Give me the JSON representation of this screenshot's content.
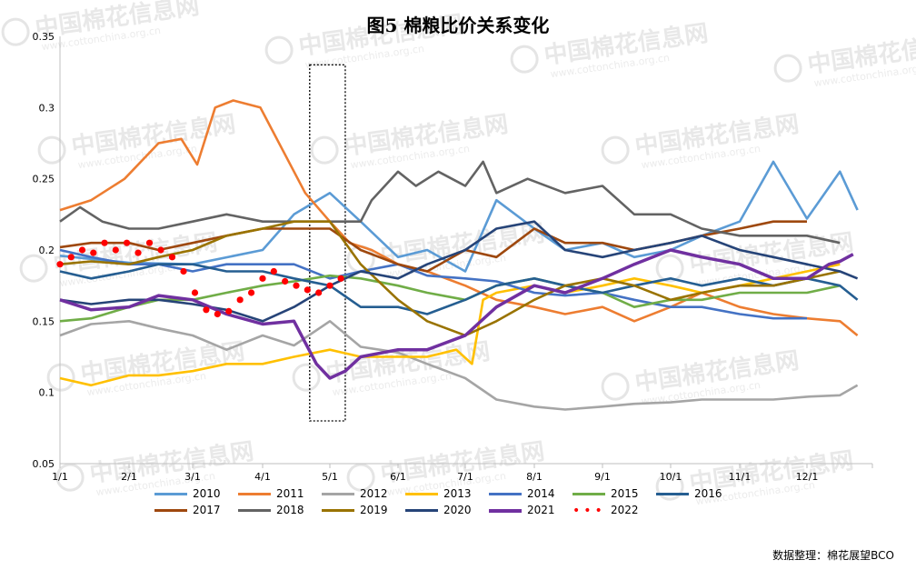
{
  "page": {
    "title": "图5  棉粮比价关系变化",
    "source": "数据整理：棉花展望BCO"
  },
  "watermark": {
    "text": "中国棉花信息网",
    "url": "www.cottonchina.org.cn",
    "icon": "cotton-logo-icon"
  },
  "chart_data": {
    "type": "line",
    "title": "图5  棉粮比价关系变化",
    "xlabel": "",
    "ylabel": "",
    "x_ticks": [
      "1/1",
      "2/1",
      "3/1",
      "4/1",
      "5/1",
      "6/1",
      "7/1",
      "8/1",
      "9/1",
      "10/1",
      "11/1",
      "12/1"
    ],
    "y_ticks": [
      "0.35",
      "0.3",
      "0.25",
      "0.2",
      "0.15",
      "0.1",
      "0.05"
    ],
    "ylim": [
      0.05,
      0.35
    ],
    "x_unit": "day_of_year",
    "xlim": [
      1,
      365
    ],
    "grid": false,
    "legend_position": "bottom",
    "highlight_box": {
      "x_start": 112,
      "x_end": 128,
      "y_low": 0.08,
      "y_high": 0.33
    },
    "series": [
      {
        "name": "2010",
        "color": "#5b9bd5",
        "style": "line",
        "x": [
          1,
          32,
          60,
          91,
          105,
          121,
          135,
          152,
          165,
          182,
          196,
          213,
          227,
          244,
          258,
          274,
          288,
          305,
          320,
          335,
          350,
          358
        ],
        "y": [
          0.196,
          0.191,
          0.19,
          0.2,
          0.225,
          0.24,
          0.22,
          0.195,
          0.2,
          0.185,
          0.235,
          0.215,
          0.2,
          0.205,
          0.195,
          0.2,
          0.21,
          0.22,
          0.262,
          0.222,
          0.255,
          0.228
        ]
      },
      {
        "name": "2011",
        "color": "#ed7d31",
        "style": "line",
        "x": [
          1,
          15,
          30,
          45,
          55,
          62,
          70,
          78,
          90,
          100,
          110,
          121,
          130,
          140,
          152,
          165,
          182,
          196,
          213,
          227,
          244,
          258,
          274,
          288,
          305,
          320,
          335,
          350,
          358
        ],
        "y": [
          0.228,
          0.235,
          0.25,
          0.275,
          0.278,
          0.26,
          0.3,
          0.305,
          0.3,
          0.27,
          0.24,
          0.22,
          0.205,
          0.2,
          0.19,
          0.185,
          0.175,
          0.165,
          0.16,
          0.155,
          0.16,
          0.15,
          0.16,
          0.17,
          0.16,
          0.155,
          0.152,
          0.15,
          0.14
        ]
      },
      {
        "name": "2012",
        "color": "#a5a5a5",
        "style": "line",
        "x": [
          1,
          15,
          32,
          45,
          60,
          75,
          91,
          105,
          121,
          135,
          152,
          165,
          182,
          196,
          213,
          227,
          244,
          258,
          274,
          288,
          305,
          320,
          335,
          350,
          358
        ],
        "y": [
          0.14,
          0.148,
          0.15,
          0.145,
          0.14,
          0.13,
          0.14,
          0.133,
          0.15,
          0.132,
          0.128,
          0.12,
          0.11,
          0.095,
          0.09,
          0.088,
          0.09,
          0.092,
          0.093,
          0.095,
          0.095,
          0.095,
          0.097,
          0.098,
          0.105
        ]
      },
      {
        "name": "2013",
        "color": "#ffc000",
        "style": "line",
        "x": [
          1,
          15,
          32,
          45,
          60,
          75,
          91,
          105,
          121,
          135,
          152,
          165,
          178,
          185,
          190,
          196,
          213,
          227,
          244,
          258,
          274,
          288,
          305,
          320,
          335,
          350
        ],
        "y": [
          0.11,
          0.105,
          0.112,
          0.112,
          0.115,
          0.12,
          0.12,
          0.125,
          0.13,
          0.125,
          0.125,
          0.125,
          0.13,
          0.12,
          0.165,
          0.17,
          0.175,
          0.17,
          0.175,
          0.18,
          0.175,
          0.17,
          0.175,
          0.18,
          0.185,
          0.19
        ]
      },
      {
        "name": "2014",
        "color": "#4472c4",
        "style": "line",
        "x": [
          1,
          15,
          32,
          45,
          60,
          75,
          91,
          105,
          121,
          135,
          152,
          165,
          182,
          196,
          213,
          227,
          244,
          258,
          274,
          288,
          305,
          320,
          335
        ],
        "y": [
          0.2,
          0.195,
          0.19,
          0.19,
          0.185,
          0.19,
          0.19,
          0.19,
          0.18,
          0.185,
          0.19,
          0.182,
          0.18,
          0.178,
          0.17,
          0.168,
          0.17,
          0.165,
          0.16,
          0.16,
          0.155,
          0.152,
          0.152
        ]
      },
      {
        "name": "2015",
        "color": "#70ad47",
        "style": "line",
        "x": [
          1,
          15,
          32,
          45,
          60,
          75,
          91,
          105,
          121,
          135,
          152,
          165,
          182,
          196,
          213,
          227,
          244,
          258,
          274,
          288,
          305,
          320,
          335,
          350
        ],
        "y": [
          0.15,
          0.152,
          0.16,
          0.165,
          0.165,
          0.17,
          0.175,
          0.178,
          0.182,
          0.18,
          0.175,
          0.17,
          0.165,
          0.175,
          0.18,
          0.175,
          0.17,
          0.16,
          0.165,
          0.165,
          0.17,
          0.17,
          0.17,
          0.175
        ]
      },
      {
        "name": "2016",
        "color": "#255e91",
        "style": "line",
        "x": [
          1,
          15,
          32,
          45,
          60,
          75,
          91,
          105,
          121,
          135,
          152,
          165,
          182,
          196,
          213,
          227,
          244,
          258,
          274,
          288,
          305,
          320,
          335,
          350,
          358
        ],
        "y": [
          0.185,
          0.18,
          0.185,
          0.19,
          0.19,
          0.185,
          0.185,
          0.18,
          0.175,
          0.16,
          0.16,
          0.155,
          0.165,
          0.175,
          0.18,
          0.175,
          0.17,
          0.175,
          0.18,
          0.175,
          0.18,
          0.175,
          0.18,
          0.175,
          0.165
        ]
      },
      {
        "name": "2017",
        "color": "#9e480e",
        "style": "line",
        "x": [
          1,
          15,
          32,
          45,
          60,
          75,
          91,
          105,
          121,
          135,
          152,
          165,
          182,
          196,
          213,
          227,
          244,
          258,
          274,
          288,
          305,
          320,
          335
        ],
        "y": [
          0.202,
          0.205,
          0.205,
          0.2,
          0.205,
          0.21,
          0.215,
          0.215,
          0.215,
          0.2,
          0.19,
          0.185,
          0.2,
          0.195,
          0.215,
          0.205,
          0.205,
          0.2,
          0.205,
          0.21,
          0.215,
          0.22,
          0.22
        ]
      },
      {
        "name": "2018",
        "color": "#636363",
        "style": "line",
        "x": [
          1,
          10,
          20,
          32,
          45,
          60,
          75,
          91,
          105,
          121,
          135,
          140,
          152,
          160,
          170,
          182,
          190,
          196,
          210,
          227,
          244,
          258,
          274,
          288,
          305,
          320,
          335,
          350
        ],
        "y": [
          0.22,
          0.23,
          0.22,
          0.215,
          0.215,
          0.22,
          0.225,
          0.22,
          0.22,
          0.22,
          0.22,
          0.235,
          0.255,
          0.245,
          0.255,
          0.245,
          0.262,
          0.24,
          0.25,
          0.24,
          0.245,
          0.225,
          0.225,
          0.215,
          0.21,
          0.21,
          0.21,
          0.205
        ]
      },
      {
        "name": "2019",
        "color": "#997300",
        "style": "line",
        "x": [
          1,
          15,
          32,
          45,
          60,
          75,
          91,
          105,
          121,
          135,
          152,
          165,
          182,
          196,
          213,
          227,
          244,
          258,
          274,
          288,
          305,
          320,
          335,
          350
        ],
        "y": [
          0.19,
          0.192,
          0.19,
          0.195,
          0.2,
          0.21,
          0.215,
          0.22,
          0.22,
          0.19,
          0.165,
          0.15,
          0.14,
          0.15,
          0.165,
          0.175,
          0.18,
          0.175,
          0.165,
          0.17,
          0.175,
          0.175,
          0.18,
          0.185
        ]
      },
      {
        "name": "2020",
        "color": "#264478",
        "style": "line",
        "x": [
          1,
          15,
          32,
          45,
          60,
          75,
          91,
          105,
          121,
          135,
          152,
          165,
          182,
          196,
          213,
          227,
          244,
          258,
          274,
          288,
          305,
          320,
          335,
          350,
          358
        ],
        "y": [
          0.165,
          0.162,
          0.165,
          0.165,
          0.162,
          0.158,
          0.15,
          0.16,
          0.175,
          0.185,
          0.18,
          0.19,
          0.2,
          0.215,
          0.22,
          0.2,
          0.195,
          0.2,
          0.205,
          0.21,
          0.2,
          0.195,
          0.19,
          0.185,
          0.18
        ]
      },
      {
        "name": "2021",
        "color": "#7030a0",
        "style": "line",
        "x": [
          1,
          15,
          32,
          45,
          60,
          75,
          91,
          105,
          115,
          121,
          128,
          135,
          152,
          165,
          182,
          196,
          213,
          227,
          244,
          258,
          274,
          288,
          305,
          320,
          335,
          345,
          350,
          356
        ],
        "y": [
          0.165,
          0.158,
          0.16,
          0.168,
          0.165,
          0.155,
          0.148,
          0.15,
          0.12,
          0.11,
          0.115,
          0.125,
          0.13,
          0.13,
          0.14,
          0.16,
          0.175,
          0.17,
          0.18,
          0.19,
          0.2,
          0.195,
          0.19,
          0.18,
          0.18,
          0.19,
          0.192,
          0.197
        ]
      },
      {
        "name": "2022",
        "color": "#ff0000",
        "style": "dots",
        "x": [
          1,
          6,
          11,
          16,
          21,
          26,
          31,
          36,
          41,
          46,
          51,
          56,
          61,
          66,
          71,
          76,
          81,
          86,
          91,
          96,
          101,
          106,
          111,
          116,
          121,
          126
        ],
        "y": [
          0.19,
          0.195,
          0.2,
          0.198,
          0.205,
          0.2,
          0.205,
          0.198,
          0.205,
          0.2,
          0.195,
          0.185,
          0.17,
          0.158,
          0.155,
          0.157,
          0.165,
          0.17,
          0.18,
          0.185,
          0.178,
          0.175,
          0.172,
          0.17,
          0.175,
          0.18
        ]
      }
    ]
  }
}
